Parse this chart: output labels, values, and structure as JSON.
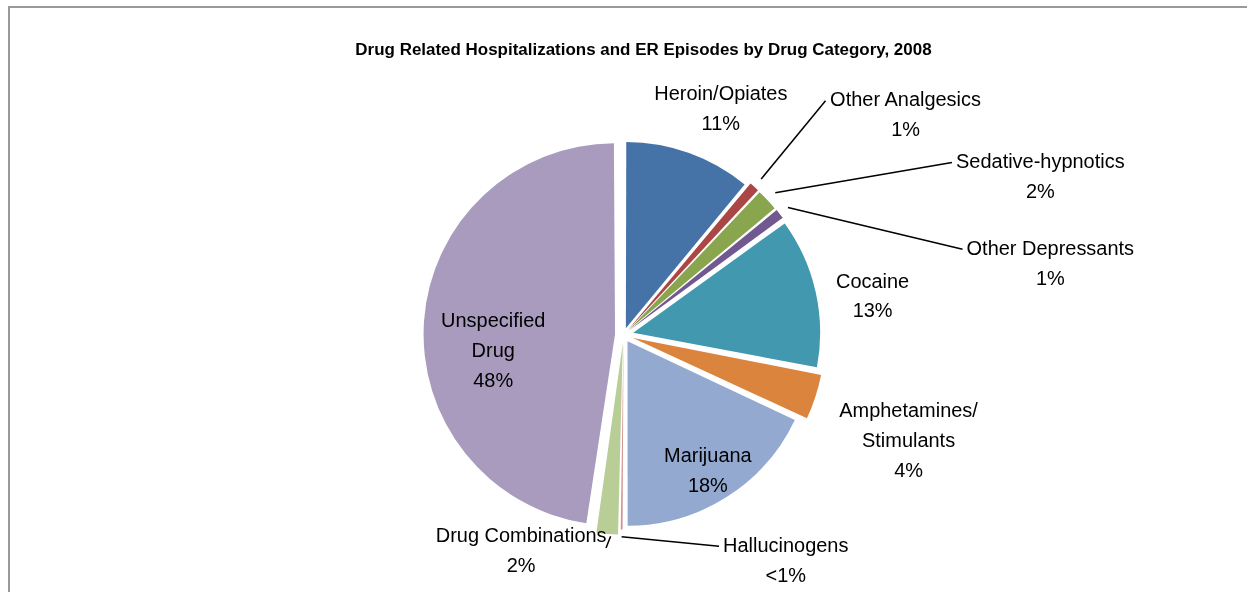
{
  "chart_data": {
    "type": "pie",
    "title": "Drug Related Hospitalizations and ER Episodes by Drug Category, 2008",
    "categories": [
      "Heroin/Opiates",
      "Other Analgesics",
      "Sedative-hypnotics",
      "Other Depressants",
      "Cocaine",
      "Amphetamines/ Stimulants",
      "Marijuana",
      "Hallucinogens",
      "Drug Combinations",
      "Unspecified Drug"
    ],
    "values": [
      11,
      1,
      2,
      1,
      13,
      4,
      18,
      0.3,
      2,
      47.7
    ],
    "value_labels": [
      "11%",
      "1%",
      "2%",
      "1%",
      "13%",
      "4%",
      "18%",
      "<1%",
      "2%",
      "48%"
    ],
    "colors": [
      "#4572a7",
      "#aa4643",
      "#89a54e",
      "#71588f",
      "#4198af",
      "#db843d",
      "#93a9cf",
      "#d19392",
      "#b9cd96",
      "#a99bbd"
    ],
    "legend": false
  }
}
